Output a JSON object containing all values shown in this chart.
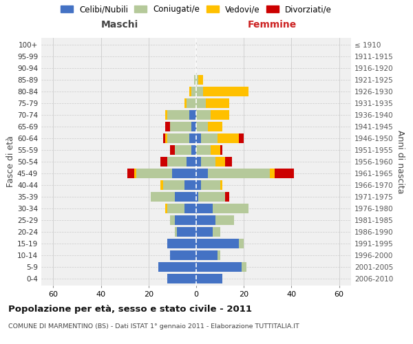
{
  "age_groups": [
    "0-4",
    "5-9",
    "10-14",
    "15-19",
    "20-24",
    "25-29",
    "30-34",
    "35-39",
    "40-44",
    "45-49",
    "50-54",
    "55-59",
    "60-64",
    "65-69",
    "70-74",
    "75-79",
    "80-84",
    "85-89",
    "90-94",
    "95-99",
    "100+"
  ],
  "birth_years": [
    "2006-2010",
    "2001-2005",
    "1996-2000",
    "1991-1995",
    "1986-1990",
    "1981-1985",
    "1976-1980",
    "1971-1975",
    "1966-1970",
    "1961-1965",
    "1956-1960",
    "1951-1955",
    "1946-1950",
    "1941-1945",
    "1936-1940",
    "1931-1935",
    "1926-1930",
    "1921-1925",
    "1916-1920",
    "1911-1915",
    "≤ 1910"
  ],
  "male": {
    "celibi": [
      12,
      16,
      11,
      12,
      8,
      9,
      5,
      9,
      5,
      10,
      4,
      2,
      3,
      2,
      3,
      0,
      0,
      0,
      0,
      0,
      0
    ],
    "coniugati": [
      0,
      0,
      0,
      0,
      1,
      2,
      7,
      10,
      9,
      15,
      8,
      7,
      9,
      9,
      9,
      4,
      2,
      1,
      0,
      0,
      0
    ],
    "vedovi": [
      0,
      0,
      0,
      0,
      0,
      0,
      1,
      0,
      1,
      1,
      0,
      0,
      1,
      0,
      1,
      1,
      1,
      0,
      0,
      0,
      0
    ],
    "divorziati": [
      0,
      0,
      0,
      0,
      0,
      0,
      0,
      0,
      0,
      3,
      3,
      2,
      1,
      2,
      0,
      0,
      0,
      0,
      0,
      0,
      0
    ]
  },
  "female": {
    "nubili": [
      11,
      19,
      9,
      18,
      7,
      8,
      7,
      1,
      2,
      5,
      2,
      0,
      2,
      0,
      0,
      0,
      0,
      0,
      0,
      0,
      0
    ],
    "coniugate": [
      0,
      2,
      1,
      2,
      3,
      8,
      15,
      11,
      8,
      26,
      6,
      6,
      7,
      5,
      6,
      4,
      3,
      1,
      0,
      0,
      0
    ],
    "vedove": [
      0,
      0,
      0,
      0,
      0,
      0,
      0,
      0,
      1,
      2,
      4,
      4,
      9,
      6,
      8,
      10,
      19,
      2,
      0,
      0,
      0
    ],
    "divorziate": [
      0,
      0,
      0,
      0,
      0,
      0,
      0,
      2,
      0,
      8,
      3,
      1,
      2,
      0,
      0,
      0,
      0,
      0,
      0,
      0,
      0
    ]
  },
  "colors": {
    "celibi": "#4472c4",
    "coniugati": "#b5c99a",
    "vedovi": "#ffc000",
    "divorziati": "#cc0000"
  },
  "xlim": 65,
  "title": "Popolazione per età, sesso e stato civile - 2011",
  "subtitle": "COMUNE DI MARMENTINO (BS) - Dati ISTAT 1° gennaio 2011 - Elaborazione TUTTITALIA.IT",
  "ylabel_left": "Fasce di età",
  "ylabel_right": "Anni di nascita",
  "xlabel_left": "Maschi",
  "xlabel_right": "Femmine",
  "legend_labels": [
    "Celibi/Nubili",
    "Coniugati/e",
    "Vedovi/e",
    "Divorziati/e"
  ],
  "legend_colors": [
    "#4472c4",
    "#b5c99a",
    "#ffc000",
    "#cc0000"
  ]
}
